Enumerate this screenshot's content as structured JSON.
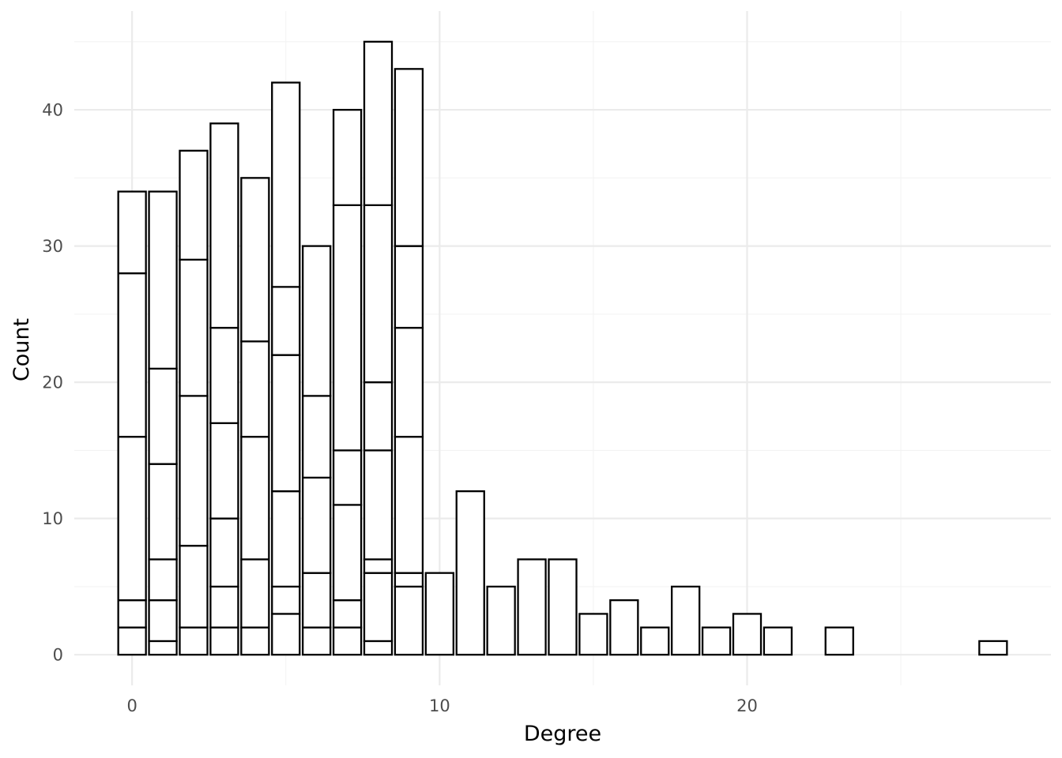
{
  "chart_data": {
    "type": "bar",
    "stacked": true,
    "title": "",
    "xlabel": "Degree",
    "ylabel": "Count",
    "xlim": [
      -1.88,
      29.88
    ],
    "ylim": [
      -2.25,
      47.25
    ],
    "x_ticks": [
      0,
      10,
      20
    ],
    "x_tick_labels": [
      "0",
      "10",
      "20"
    ],
    "y_ticks": [
      0,
      10,
      20,
      30,
      40
    ],
    "y_tick_labels": [
      "0",
      "10",
      "20",
      "30",
      "40"
    ],
    "grid": true,
    "legend": "none",
    "fill_color": "#ffffff",
    "outline_color": "#000000",
    "bar_width": 0.9,
    "bars": [
      {
        "x": 0,
        "total": 34,
        "segment_boundaries": [
          2,
          4,
          16,
          28,
          34
        ]
      },
      {
        "x": 1,
        "total": 34,
        "segment_boundaries": [
          1,
          4,
          7,
          14,
          21,
          34
        ]
      },
      {
        "x": 2,
        "total": 37,
        "segment_boundaries": [
          2,
          8,
          19,
          29,
          37
        ]
      },
      {
        "x": 3,
        "total": 39,
        "segment_boundaries": [
          2,
          5,
          10,
          17,
          24,
          39
        ]
      },
      {
        "x": 4,
        "total": 35,
        "segment_boundaries": [
          2,
          7,
          16,
          23,
          35
        ]
      },
      {
        "x": 5,
        "total": 42,
        "segment_boundaries": [
          3,
          5,
          12,
          22,
          27,
          42
        ]
      },
      {
        "x": 6,
        "total": 30,
        "segment_boundaries": [
          2,
          6,
          13,
          19,
          30
        ]
      },
      {
        "x": 7,
        "total": 40,
        "segment_boundaries": [
          2,
          4,
          11,
          15,
          33,
          40
        ]
      },
      {
        "x": 8,
        "total": 45,
        "segment_boundaries": [
          1,
          6,
          7,
          15,
          20,
          33,
          45
        ]
      },
      {
        "x": 9,
        "total": 43,
        "segment_boundaries": [
          5,
          6,
          16,
          24,
          30,
          43
        ]
      },
      {
        "x": 10,
        "total": 6,
        "segment_boundaries": [
          6
        ]
      },
      {
        "x": 11,
        "total": 12,
        "segment_boundaries": [
          12
        ]
      },
      {
        "x": 12,
        "total": 5,
        "segment_boundaries": [
          5
        ]
      },
      {
        "x": 13,
        "total": 7,
        "segment_boundaries": [
          7
        ]
      },
      {
        "x": 14,
        "total": 7,
        "segment_boundaries": [
          7
        ]
      },
      {
        "x": 15,
        "total": 3,
        "segment_boundaries": [
          3
        ]
      },
      {
        "x": 16,
        "total": 4,
        "segment_boundaries": [
          4
        ]
      },
      {
        "x": 17,
        "total": 2,
        "segment_boundaries": [
          2
        ]
      },
      {
        "x": 18,
        "total": 5,
        "segment_boundaries": [
          5
        ]
      },
      {
        "x": 19,
        "total": 2,
        "segment_boundaries": [
          2
        ]
      },
      {
        "x": 20,
        "total": 3,
        "segment_boundaries": [
          3
        ]
      },
      {
        "x": 21,
        "total": 2,
        "segment_boundaries": [
          2
        ]
      },
      {
        "x": 23,
        "total": 2,
        "segment_boundaries": [
          2
        ]
      },
      {
        "x": 28,
        "total": 1,
        "segment_boundaries": [
          1
        ]
      }
    ]
  }
}
